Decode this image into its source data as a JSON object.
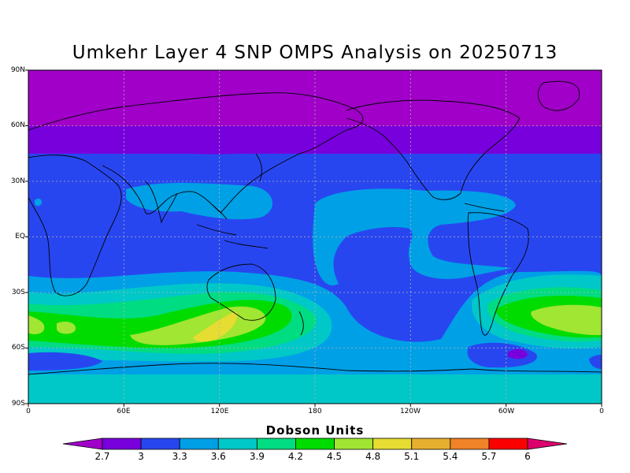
{
  "title": "Umkehr Layer 4 SNP OMPS Analysis on 20250713",
  "lat_labels": [
    "90N",
    "60N",
    "30N",
    "EQ",
    "30S",
    "60S",
    "90S"
  ],
  "lon_labels": [
    "0",
    "60E",
    "120E",
    "180",
    "120W",
    "60W",
    "0"
  ],
  "colorbar": {
    "title": "Dobson Units",
    "ticks": [
      "2.7",
      "3",
      "3.3",
      "3.6",
      "3.9",
      "4.2",
      "4.5",
      "4.8",
      "5.1",
      "5.4",
      "5.7",
      "6"
    ],
    "colors": [
      "#a000c8",
      "#7800dc",
      "#2846f0",
      "#00a0e6",
      "#00c8c8",
      "#00dc82",
      "#00dc00",
      "#a0e632",
      "#e6dc32",
      "#e6af2d",
      "#f08228",
      "#fa0000",
      "#dc006e"
    ]
  }
}
